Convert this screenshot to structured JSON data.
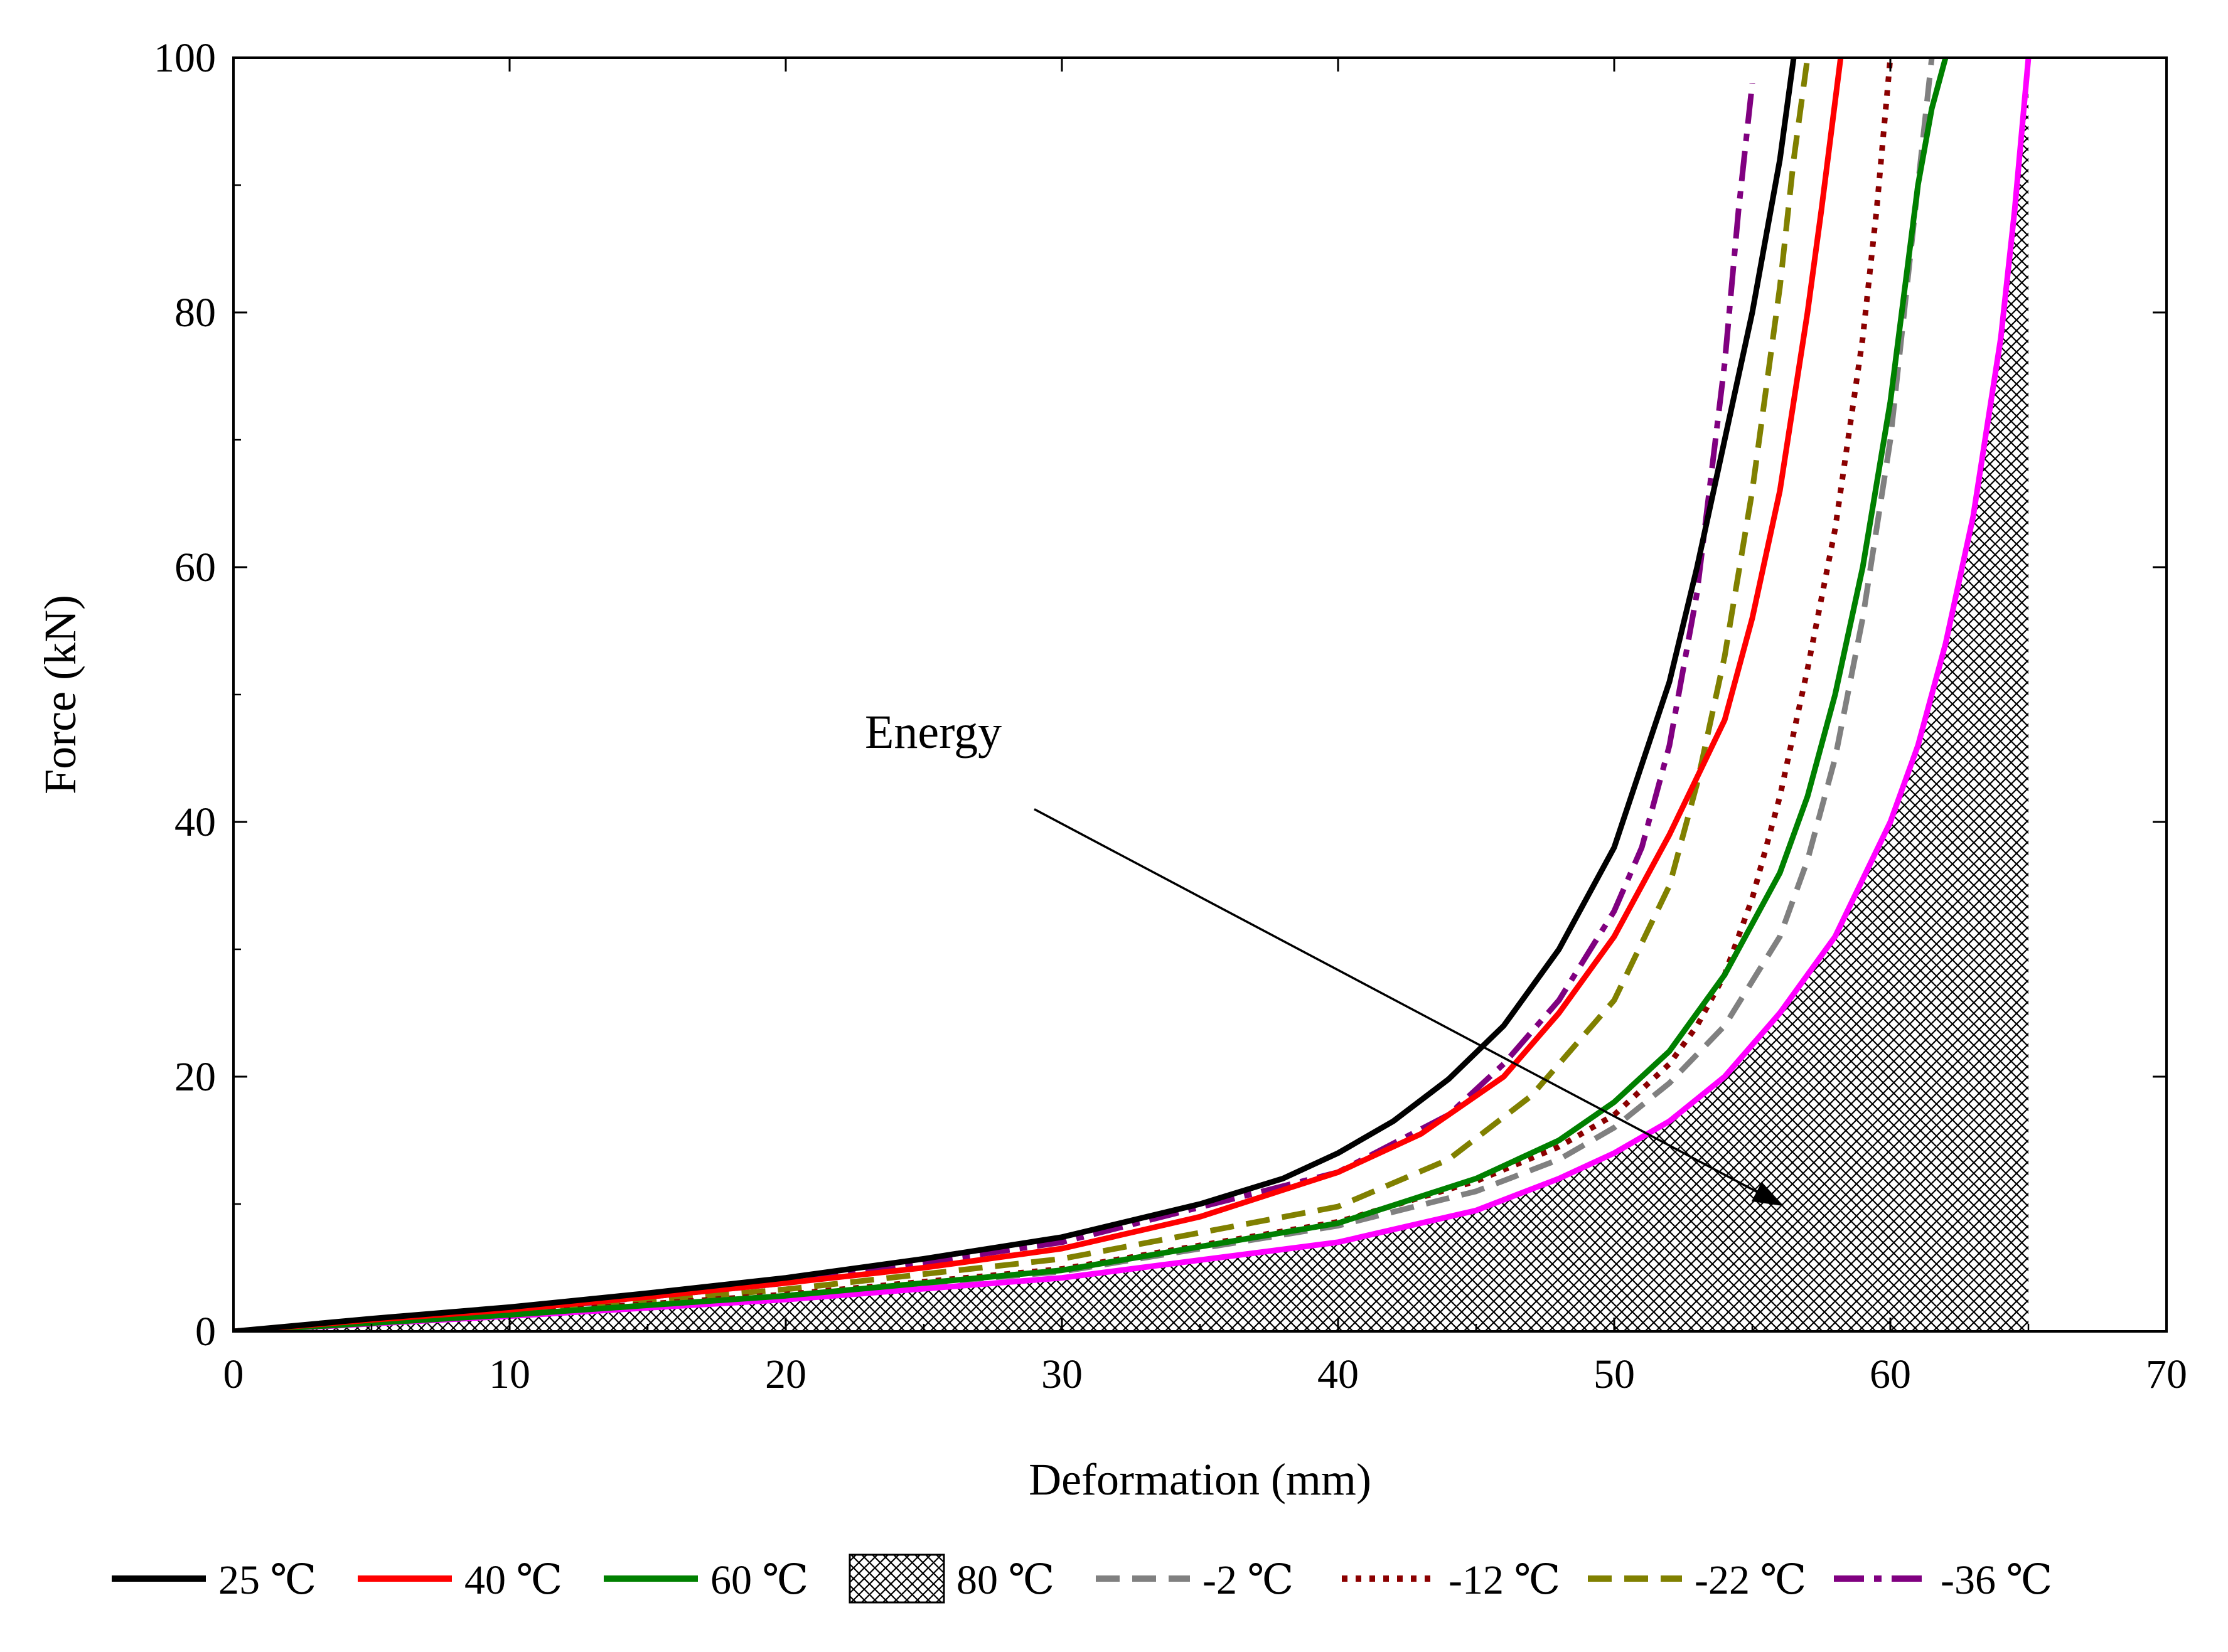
{
  "chart_data": {
    "type": "line",
    "title": "",
    "xlabel": "Deformation (mm)",
    "ylabel": "Force (kN)",
    "xlim": [
      0,
      70
    ],
    "ylim": [
      0,
      100
    ],
    "xticks": [
      0,
      10,
      20,
      30,
      40,
      50,
      60,
      70
    ],
    "yticks": [
      0,
      20,
      40,
      60,
      80,
      100
    ],
    "grid": false,
    "legend_position": "bottom",
    "annotation": {
      "text": "Energy",
      "arrow_from": [
        29,
        41
      ],
      "arrow_to": [
        56,
        10
      ]
    },
    "shaded_region": {
      "series": "80 ℃",
      "pattern": "crosshatch",
      "x_end": 65
    },
    "series": [
      {
        "name": "25 ℃",
        "color": "#000000",
        "style": "solid",
        "x": [
          0,
          5,
          10,
          15,
          20,
          25,
          30,
          35,
          38,
          40,
          42,
          44,
          46,
          48,
          50,
          52,
          53,
          54,
          55,
          56,
          56.5
        ],
        "y": [
          0,
          1,
          1.9,
          3,
          4.2,
          5.7,
          7.4,
          10,
          12,
          14,
          16.5,
          19.8,
          24,
          30,
          38,
          51,
          60,
          70,
          80,
          92,
          100
        ]
      },
      {
        "name": "40 ℃",
        "color": "#ff0000",
        "style": "solid",
        "x": [
          0,
          5,
          10,
          15,
          20,
          25,
          30,
          35,
          40,
          43,
          46,
          48,
          50,
          52,
          54,
          55,
          56,
          57,
          57.5,
          58.2
        ],
        "y": [
          0,
          0.9,
          1.7,
          2.7,
          3.8,
          5,
          6.5,
          9,
          12.5,
          15.5,
          20,
          25,
          31,
          39,
          48,
          56,
          66,
          80,
          88,
          100
        ]
      },
      {
        "name": "60 ℃",
        "color": "#008000",
        "style": "solid",
        "x": [
          0,
          10,
          20,
          30,
          40,
          45,
          48,
          50,
          52,
          54,
          56,
          57,
          58,
          59,
          60,
          61,
          61.5,
          62
        ],
        "y": [
          0,
          1.3,
          2.8,
          4.8,
          8.5,
          12,
          15,
          18,
          22,
          28,
          36,
          42,
          50,
          60,
          73,
          90,
          96,
          100
        ]
      },
      {
        "name": "80 ℃",
        "color": "#ff00ff",
        "style": "solid",
        "hatched": true,
        "x": [
          0,
          10,
          20,
          30,
          40,
          45,
          48,
          50,
          52,
          54,
          56,
          58,
          60,
          61,
          62,
          63,
          64,
          64.5,
          65
        ],
        "y": [
          0,
          1.2,
          2.5,
          4.2,
          7,
          9.5,
          12,
          14,
          16.5,
          20,
          25,
          31,
          40,
          46,
          54,
          64,
          78,
          88,
          100
        ]
      },
      {
        "name": "-2 ℃",
        "color": "#808080",
        "style": "dashed",
        "x": [
          0,
          10,
          20,
          30,
          40,
          45,
          48,
          50,
          52,
          54,
          56,
          57,
          58,
          59,
          60,
          60.5,
          61,
          61.5
        ],
        "y": [
          0,
          1.3,
          2.8,
          4.7,
          8.3,
          11,
          13.5,
          16,
          19.5,
          24,
          31,
          37,
          45,
          56,
          70,
          80,
          90,
          100
        ]
      },
      {
        "name": "-12 ℃",
        "color": "#8b0000",
        "style": "dotted",
        "x": [
          0,
          10,
          20,
          30,
          40,
          45,
          48,
          50,
          52,
          53,
          54,
          55,
          56,
          57,
          58,
          59,
          59.5,
          60
        ],
        "y": [
          0,
          1.4,
          2.9,
          4.9,
          8.6,
          11.8,
          14.5,
          17,
          21,
          24,
          28,
          34,
          42,
          52,
          63,
          78,
          88,
          100
        ]
      },
      {
        "name": "-22 ℃",
        "color": "#808000",
        "style": "dashed",
        "x": [
          0,
          10,
          20,
          30,
          40,
          44,
          47,
          50,
          52,
          53,
          54,
          55,
          56,
          56.5,
          57
        ],
        "y": [
          0,
          1.5,
          3.3,
          5.7,
          9.8,
          13.5,
          18.5,
          26,
          35,
          43,
          53,
          66,
          82,
          92,
          100
        ]
      },
      {
        "name": "-36 ℃",
        "color": "#800080",
        "style": "dashdot",
        "x": [
          0,
          10,
          20,
          30,
          40,
          44,
          46,
          48,
          50,
          51,
          52,
          53,
          54,
          54.5,
          55
        ],
        "y": [
          0,
          1.6,
          3.8,
          7,
          12.5,
          17,
          21,
          26,
          33,
          38,
          46,
          58,
          76,
          88,
          98
        ]
      }
    ]
  }
}
